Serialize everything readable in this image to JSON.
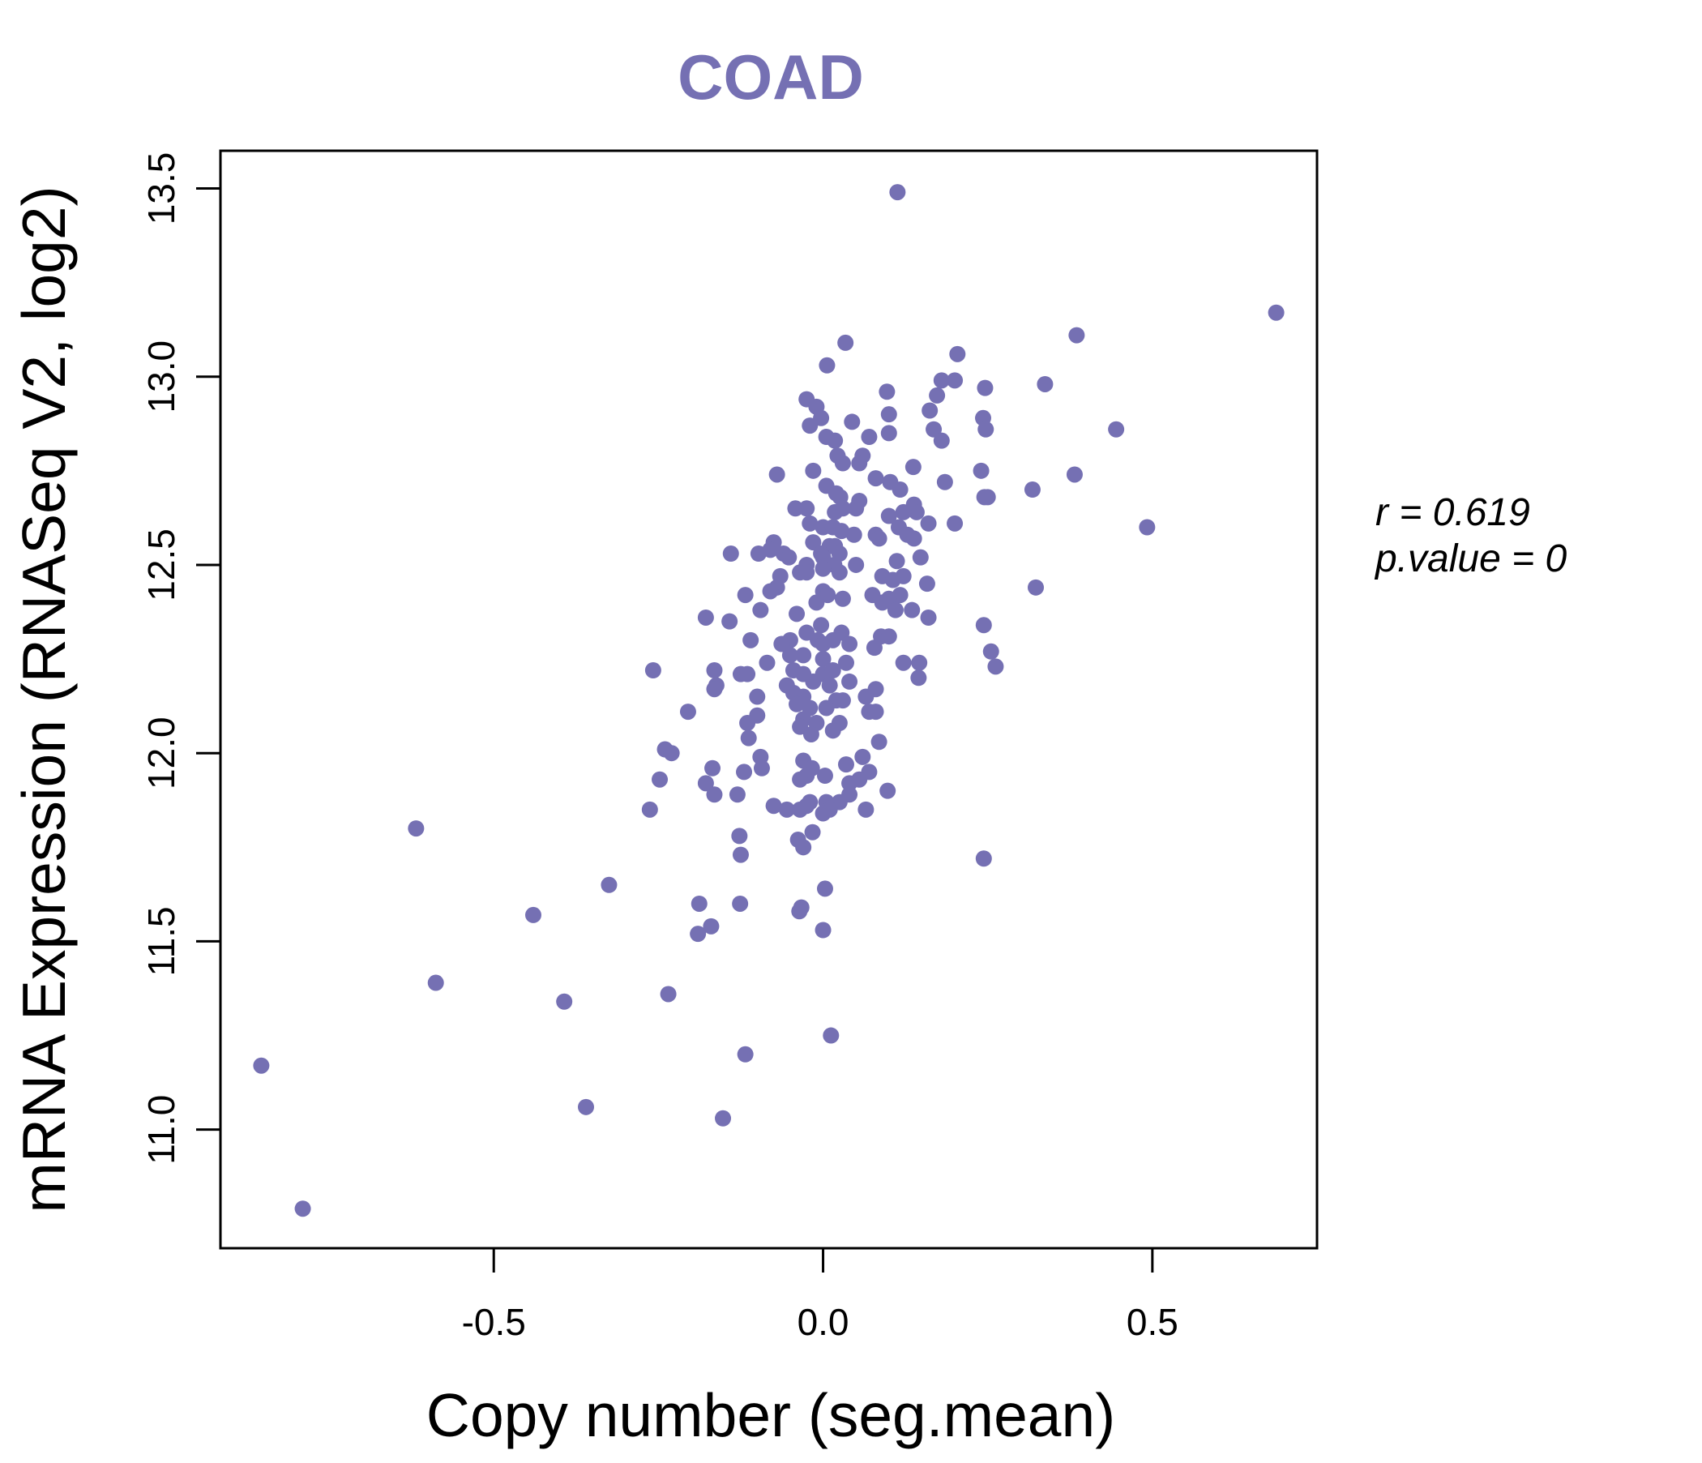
{
  "chart_data": {
    "type": "scatter",
    "title": "COAD",
    "xlabel": "Copy number (seg.mean)",
    "ylabel": "mRNA Expression (RNASeq V2, log2)",
    "xlim": [
      -0.915,
      0.75
    ],
    "ylim": [
      10.685,
      13.6
    ],
    "x_ticks": [
      -0.5,
      0.0,
      0.5
    ],
    "x_tick_labels": [
      "-0.5",
      "0.0",
      "0.5"
    ],
    "y_ticks": [
      11.0,
      11.5,
      12.0,
      12.5,
      13.0,
      13.5
    ],
    "y_tick_labels": [
      "11.0",
      "11.5",
      "12.0",
      "12.5",
      "13.0",
      "13.5"
    ],
    "grid": false,
    "point_color": "#7570b3",
    "title_color": "#7570b3",
    "annotation": {
      "r_label": "r = 0.619",
      "p_label": "p.value = 0"
    },
    "series": [
      {
        "name": "samples",
        "points": [
          [
            0.113,
            13.49
          ],
          [
            0.688,
            13.17
          ],
          [
            0.385,
            13.11
          ],
          [
            0.034,
            13.09
          ],
          [
            0.204,
            13.06
          ],
          [
            0.006,
            13.03
          ],
          [
            0.337,
            12.98
          ],
          [
            0.246,
            12.97
          ],
          [
            0.18,
            12.99
          ],
          [
            0.2,
            12.99
          ],
          [
            0.097,
            12.96
          ],
          [
            0.173,
            12.95
          ],
          [
            -0.025,
            12.94
          ],
          [
            -0.01,
            12.92
          ],
          [
            0.162,
            12.91
          ],
          [
            0.1,
            12.9
          ],
          [
            0.243,
            12.89
          ],
          [
            -0.003,
            12.89
          ],
          [
            -0.02,
            12.87
          ],
          [
            0.044,
            12.88
          ],
          [
            0.445,
            12.86
          ],
          [
            0.247,
            12.86
          ],
          [
            0.168,
            12.86
          ],
          [
            0.1,
            12.85
          ],
          [
            0.07,
            12.84
          ],
          [
            0.18,
            12.83
          ],
          [
            0.005,
            12.84
          ],
          [
            0.018,
            12.83
          ],
          [
            0.022,
            12.79
          ],
          [
            0.06,
            12.79
          ],
          [
            0.03,
            12.77
          ],
          [
            0.055,
            12.77
          ],
          [
            0.137,
            12.76
          ],
          [
            -0.07,
            12.74
          ],
          [
            -0.015,
            12.75
          ],
          [
            0.08,
            12.73
          ],
          [
            0.102,
            12.72
          ],
          [
            0.185,
            12.72
          ],
          [
            0.24,
            12.75
          ],
          [
            0.382,
            12.74
          ],
          [
            0.318,
            12.7
          ],
          [
            0.005,
            12.71
          ],
          [
            0.117,
            12.7
          ],
          [
            0.02,
            12.69
          ],
          [
            0.026,
            12.68
          ],
          [
            0.25,
            12.68
          ],
          [
            0.245,
            12.68
          ],
          [
            0.055,
            12.67
          ],
          [
            0.138,
            12.66
          ],
          [
            0.142,
            12.64
          ],
          [
            -0.042,
            12.65
          ],
          [
            -0.025,
            12.65
          ],
          [
            0.018,
            12.64
          ],
          [
            0.03,
            12.65
          ],
          [
            0.05,
            12.65
          ],
          [
            0.122,
            12.64
          ],
          [
            0.1,
            12.63
          ],
          [
            0.492,
            12.6
          ],
          [
            0.2,
            12.61
          ],
          [
            0.16,
            12.61
          ],
          [
            -0.02,
            12.61
          ],
          [
            0.0,
            12.6
          ],
          [
            0.015,
            12.6
          ],
          [
            0.028,
            12.59
          ],
          [
            0.115,
            12.6
          ],
          [
            0.128,
            12.58
          ],
          [
            0.08,
            12.58
          ],
          [
            0.047,
            12.58
          ],
          [
            0.138,
            12.57
          ],
          [
            0.085,
            12.57
          ],
          [
            -0.075,
            12.56
          ],
          [
            -0.015,
            12.56
          ],
          [
            0.01,
            12.55
          ],
          [
            0.018,
            12.55
          ],
          [
            -0.08,
            12.54
          ],
          [
            -0.06,
            12.53
          ],
          [
            -0.052,
            12.52
          ],
          [
            -0.003,
            12.53
          ],
          [
            0.025,
            12.53
          ],
          [
            -0.14,
            12.53
          ],
          [
            -0.098,
            12.53
          ],
          [
            0.148,
            12.52
          ],
          [
            0.112,
            12.51
          ],
          [
            0.0,
            12.52
          ],
          [
            0.017,
            12.5
          ],
          [
            -0.025,
            12.5
          ],
          [
            0.05,
            12.5
          ],
          [
            0.0,
            12.49
          ],
          [
            0.025,
            12.48
          ],
          [
            -0.035,
            12.48
          ],
          [
            -0.065,
            12.47
          ],
          [
            -0.025,
            12.48
          ],
          [
            0.122,
            12.47
          ],
          [
            0.09,
            12.47
          ],
          [
            0.106,
            12.46
          ],
          [
            0.158,
            12.45
          ],
          [
            0.323,
            12.44
          ],
          [
            -0.07,
            12.44
          ],
          [
            -0.08,
            12.43
          ],
          [
            0.0,
            12.43
          ],
          [
            0.007,
            12.42
          ],
          [
            0.075,
            12.42
          ],
          [
            0.117,
            12.42
          ],
          [
            0.1,
            12.41
          ],
          [
            0.09,
            12.4
          ],
          [
            0.03,
            12.41
          ],
          [
            -0.01,
            12.4
          ],
          [
            -0.118,
            12.42
          ],
          [
            0.135,
            12.38
          ],
          [
            0.11,
            12.38
          ],
          [
            -0.095,
            12.38
          ],
          [
            -0.04,
            12.37
          ],
          [
            0.16,
            12.36
          ],
          [
            -0.142,
            12.35
          ],
          [
            -0.178,
            12.36
          ],
          [
            0.244,
            12.34
          ],
          [
            -0.003,
            12.34
          ],
          [
            0.028,
            12.32
          ],
          [
            -0.025,
            12.32
          ],
          [
            -0.05,
            12.3
          ],
          [
            -0.008,
            12.3
          ],
          [
            0.0,
            12.29
          ],
          [
            0.015,
            12.3
          ],
          [
            0.088,
            12.31
          ],
          [
            0.1,
            12.31
          ],
          [
            -0.11,
            12.3
          ],
          [
            -0.063,
            12.29
          ],
          [
            0.04,
            12.29
          ],
          [
            0.078,
            12.28
          ],
          [
            0.255,
            12.27
          ],
          [
            -0.03,
            12.26
          ],
          [
            -0.05,
            12.26
          ],
          [
            0.0,
            12.25
          ],
          [
            -0.085,
            12.24
          ],
          [
            0.122,
            12.24
          ],
          [
            0.146,
            12.24
          ],
          [
            0.262,
            12.23
          ],
          [
            0.035,
            12.24
          ],
          [
            -0.045,
            12.22
          ],
          [
            -0.03,
            12.21
          ],
          [
            0.0,
            12.21
          ],
          [
            0.015,
            12.22
          ],
          [
            -0.165,
            12.22
          ],
          [
            -0.125,
            12.21
          ],
          [
            -0.258,
            12.22
          ],
          [
            -0.115,
            12.21
          ],
          [
            0.145,
            12.2
          ],
          [
            -0.015,
            12.19
          ],
          [
            0.01,
            12.18
          ],
          [
            -0.162,
            12.18
          ],
          [
            0.04,
            12.19
          ],
          [
            -0.055,
            12.18
          ],
          [
            -0.165,
            12.17
          ],
          [
            0.08,
            12.17
          ],
          [
            -0.045,
            12.16
          ],
          [
            0.065,
            12.15
          ],
          [
            -0.03,
            12.15
          ],
          [
            0.02,
            12.14
          ],
          [
            0.03,
            12.14
          ],
          [
            -0.1,
            12.15
          ],
          [
            -0.04,
            12.13
          ],
          [
            -0.02,
            12.12
          ],
          [
            0.005,
            12.12
          ],
          [
            0.07,
            12.11
          ],
          [
            0.08,
            12.11
          ],
          [
            -0.205,
            12.11
          ],
          [
            -0.1,
            12.1
          ],
          [
            -0.03,
            12.09
          ],
          [
            -0.01,
            12.08
          ],
          [
            0.025,
            12.08
          ],
          [
            -0.115,
            12.08
          ],
          [
            -0.035,
            12.07
          ],
          [
            0.015,
            12.06
          ],
          [
            -0.018,
            12.05
          ],
          [
            -0.113,
            12.04
          ],
          [
            0.085,
            12.03
          ],
          [
            -0.24,
            12.01
          ],
          [
            -0.23,
            12.0
          ],
          [
            -0.095,
            11.99
          ],
          [
            0.06,
            11.99
          ],
          [
            -0.03,
            11.98
          ],
          [
            0.035,
            11.97
          ],
          [
            -0.168,
            11.96
          ],
          [
            -0.017,
            11.96
          ],
          [
            -0.093,
            11.96
          ],
          [
            -0.12,
            11.95
          ],
          [
            0.07,
            11.95
          ],
          [
            -0.025,
            11.94
          ],
          [
            0.003,
            11.94
          ],
          [
            -0.035,
            11.93
          ],
          [
            -0.248,
            11.93
          ],
          [
            0.04,
            11.92
          ],
          [
            0.055,
            11.93
          ],
          [
            -0.178,
            11.92
          ],
          [
            -0.165,
            11.89
          ],
          [
            -0.13,
            11.89
          ],
          [
            0.098,
            11.9
          ],
          [
            0.04,
            11.89
          ],
          [
            -0.02,
            11.87
          ],
          [
            0.005,
            11.87
          ],
          [
            0.025,
            11.87
          ],
          [
            0.01,
            11.85
          ],
          [
            0.065,
            11.85
          ],
          [
            -0.075,
            11.86
          ],
          [
            -0.055,
            11.85
          ],
          [
            -0.035,
            11.85
          ],
          [
            -0.025,
            11.86
          ],
          [
            0.0,
            11.84
          ],
          [
            -0.263,
            11.85
          ],
          [
            -0.618,
            11.8
          ],
          [
            -0.016,
            11.79
          ],
          [
            -0.127,
            11.78
          ],
          [
            -0.038,
            11.77
          ],
          [
            -0.03,
            11.75
          ],
          [
            -0.125,
            11.73
          ],
          [
            0.244,
            11.72
          ],
          [
            -0.325,
            11.65
          ],
          [
            0.003,
            11.64
          ],
          [
            -0.188,
            11.6
          ],
          [
            -0.126,
            11.6
          ],
          [
            -0.033,
            11.59
          ],
          [
            -0.036,
            11.58
          ],
          [
            -0.44,
            11.57
          ],
          [
            -0.17,
            11.54
          ],
          [
            -0.19,
            11.52
          ],
          [
            0.0,
            11.53
          ],
          [
            -0.588,
            11.39
          ],
          [
            -0.235,
            11.36
          ],
          [
            -0.393,
            11.34
          ],
          [
            0.012,
            11.25
          ],
          [
            -0.118,
            11.2
          ],
          [
            -0.853,
            11.17
          ],
          [
            -0.36,
            11.06
          ],
          [
            -0.152,
            11.03
          ],
          [
            -0.79,
            10.79
          ]
        ]
      }
    ]
  }
}
